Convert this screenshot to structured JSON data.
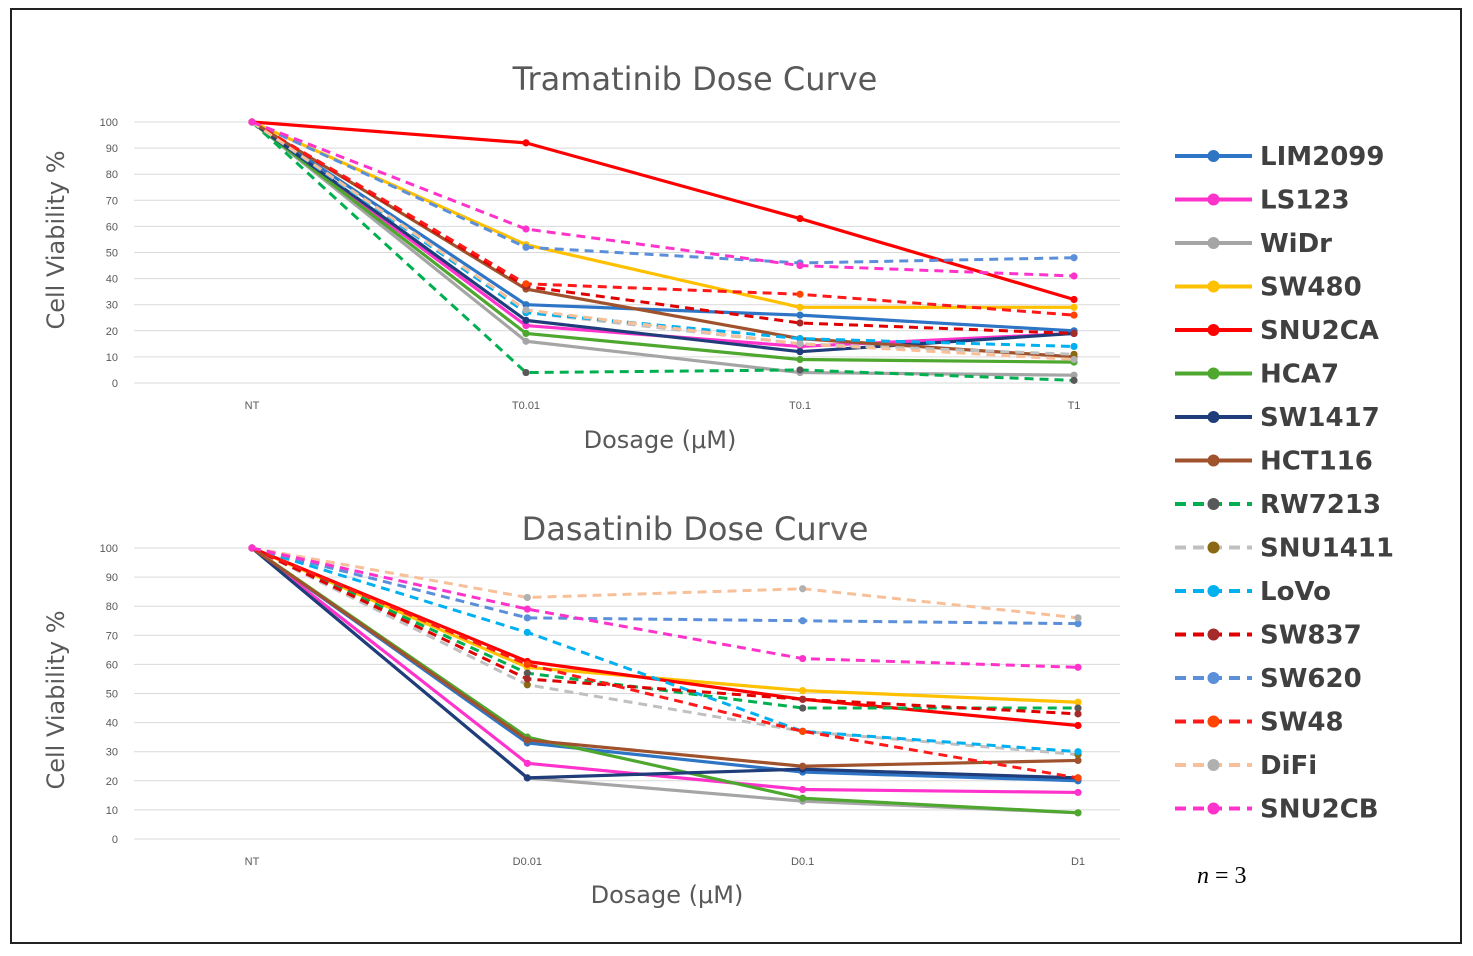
{
  "chart_data": [
    {
      "type": "line",
      "title": "Tramatinib Dose Curve",
      "xlabel": "Dosage (μM)",
      "ylabel": "Cell Viability %",
      "categories": [
        "NT",
        "T0.01",
        "T0.1",
        "T1"
      ],
      "ylim": [
        0,
        100
      ],
      "yticks": [
        0,
        10,
        20,
        30,
        40,
        50,
        60,
        70,
        80,
        90,
        100
      ],
      "grid": true,
      "series": [
        {
          "name": "LIM2099",
          "values": [
            100,
            30,
            26,
            20
          ]
        },
        {
          "name": "LS123",
          "values": [
            100,
            22,
            14,
            19
          ]
        },
        {
          "name": "WiDr",
          "values": [
            100,
            16,
            4,
            3
          ]
        },
        {
          "name": "SW480",
          "values": [
            100,
            53,
            29,
            29
          ]
        },
        {
          "name": "SNU2CA",
          "values": [
            100,
            92,
            63,
            32
          ]
        },
        {
          "name": "HCA7",
          "values": [
            100,
            19,
            9,
            8
          ]
        },
        {
          "name": "SW1417",
          "values": [
            100,
            24,
            12,
            19
          ]
        },
        {
          "name": "HCT116",
          "values": [
            100,
            36,
            17,
            10
          ]
        },
        {
          "name": "RW7213",
          "values": [
            100,
            4,
            5,
            1
          ]
        },
        {
          "name": "SNU1411",
          "values": [
            100,
            27,
            15,
            11
          ]
        },
        {
          "name": "LoVo",
          "values": [
            100,
            27,
            17,
            14
          ]
        },
        {
          "name": "SW837",
          "values": [
            100,
            37,
            23,
            19
          ]
        },
        {
          "name": "SW620",
          "values": [
            100,
            52,
            46,
            48
          ]
        },
        {
          "name": "SW48",
          "values": [
            100,
            38,
            34,
            26
          ]
        },
        {
          "name": "DiFi",
          "values": [
            100,
            28,
            15,
            9
          ]
        },
        {
          "name": "SNU2CB",
          "values": [
            100,
            59,
            45,
            41
          ]
        }
      ]
    },
    {
      "type": "line",
      "title": "Dasatinib Dose Curve",
      "xlabel": "Dosage (μM)",
      "ylabel": "Cell Viability %",
      "categories": [
        "NT",
        "D0.01",
        "D0.1",
        "D1"
      ],
      "ylim": [
        0,
        100
      ],
      "yticks": [
        0,
        10,
        20,
        30,
        40,
        50,
        60,
        70,
        80,
        90,
        100
      ],
      "grid": true,
      "series": [
        {
          "name": "LIM2099",
          "values": [
            100,
            33,
            23,
            20
          ]
        },
        {
          "name": "LS123",
          "values": [
            100,
            26,
            17,
            16
          ]
        },
        {
          "name": "WiDr",
          "values": [
            100,
            21,
            13,
            9
          ]
        },
        {
          "name": "SW480",
          "values": [
            100,
            59,
            51,
            47
          ]
        },
        {
          "name": "SNU2CA",
          "values": [
            100,
            61,
            48,
            39
          ]
        },
        {
          "name": "HCA7",
          "values": [
            100,
            35,
            14,
            9
          ]
        },
        {
          "name": "SW1417",
          "values": [
            100,
            21,
            24,
            21
          ]
        },
        {
          "name": "HCT116",
          "values": [
            100,
            34,
            25,
            27
          ]
        },
        {
          "name": "RW7213",
          "values": [
            100,
            57,
            45,
            45
          ]
        },
        {
          "name": "SNU1411",
          "values": [
            100,
            53,
            37,
            29
          ]
        },
        {
          "name": "LoVo",
          "values": [
            100,
            71,
            37,
            30
          ]
        },
        {
          "name": "SW837",
          "values": [
            100,
            55,
            48,
            43
          ]
        },
        {
          "name": "SW620",
          "values": [
            100,
            76,
            75,
            74
          ]
        },
        {
          "name": "SW48",
          "values": [
            100,
            60,
            37,
            21
          ]
        },
        {
          "name": "DiFi",
          "values": [
            100,
            83,
            86,
            76
          ]
        },
        {
          "name": "SNU2CB",
          "values": [
            100,
            79,
            62,
            59
          ]
        }
      ]
    }
  ],
  "legend": {
    "placement": "right",
    "items": [
      {
        "name": "LIM2099",
        "color": "#2e75c6",
        "dash": false
      },
      {
        "name": "LS123",
        "color": "#ff33cc",
        "dash": false
      },
      {
        "name": "WiDr",
        "color": "#a5a5a5",
        "dash": false
      },
      {
        "name": "SW480",
        "color": "#ffc000",
        "dash": false
      },
      {
        "name": "SNU2CA",
        "color": "#ff0000",
        "dash": false
      },
      {
        "name": "HCA7",
        "color": "#4ea72e",
        "dash": false
      },
      {
        "name": "SW1417",
        "color": "#1f3d7a",
        "dash": false
      },
      {
        "name": "HCT116",
        "color": "#a0522d",
        "dash": false
      },
      {
        "name": "RW7213",
        "color": "#00b050",
        "dash": true,
        "marker": "#595959"
      },
      {
        "name": "SNU1411",
        "color": "#c0c0c0",
        "dash": true,
        "marker": "#8b6914"
      },
      {
        "name": "LoVo",
        "color": "#00b0f0",
        "dash": true
      },
      {
        "name": "SW837",
        "color": "#e00000",
        "dash": true,
        "marker": "#a52a2a"
      },
      {
        "name": "SW620",
        "color": "#5b8fd9",
        "dash": true
      },
      {
        "name": "SW48",
        "color": "#ff1a1a",
        "dash": true,
        "marker": "#ff4500"
      },
      {
        "name": "DiFi",
        "color": "#f8c09a",
        "dash": true,
        "marker": "#b0b0b0"
      },
      {
        "name": "SNU2CB",
        "color": "#ff33cc",
        "dash": true
      }
    ]
  },
  "annotation": {
    "n_label": "n",
    "n_value": " = 3"
  }
}
